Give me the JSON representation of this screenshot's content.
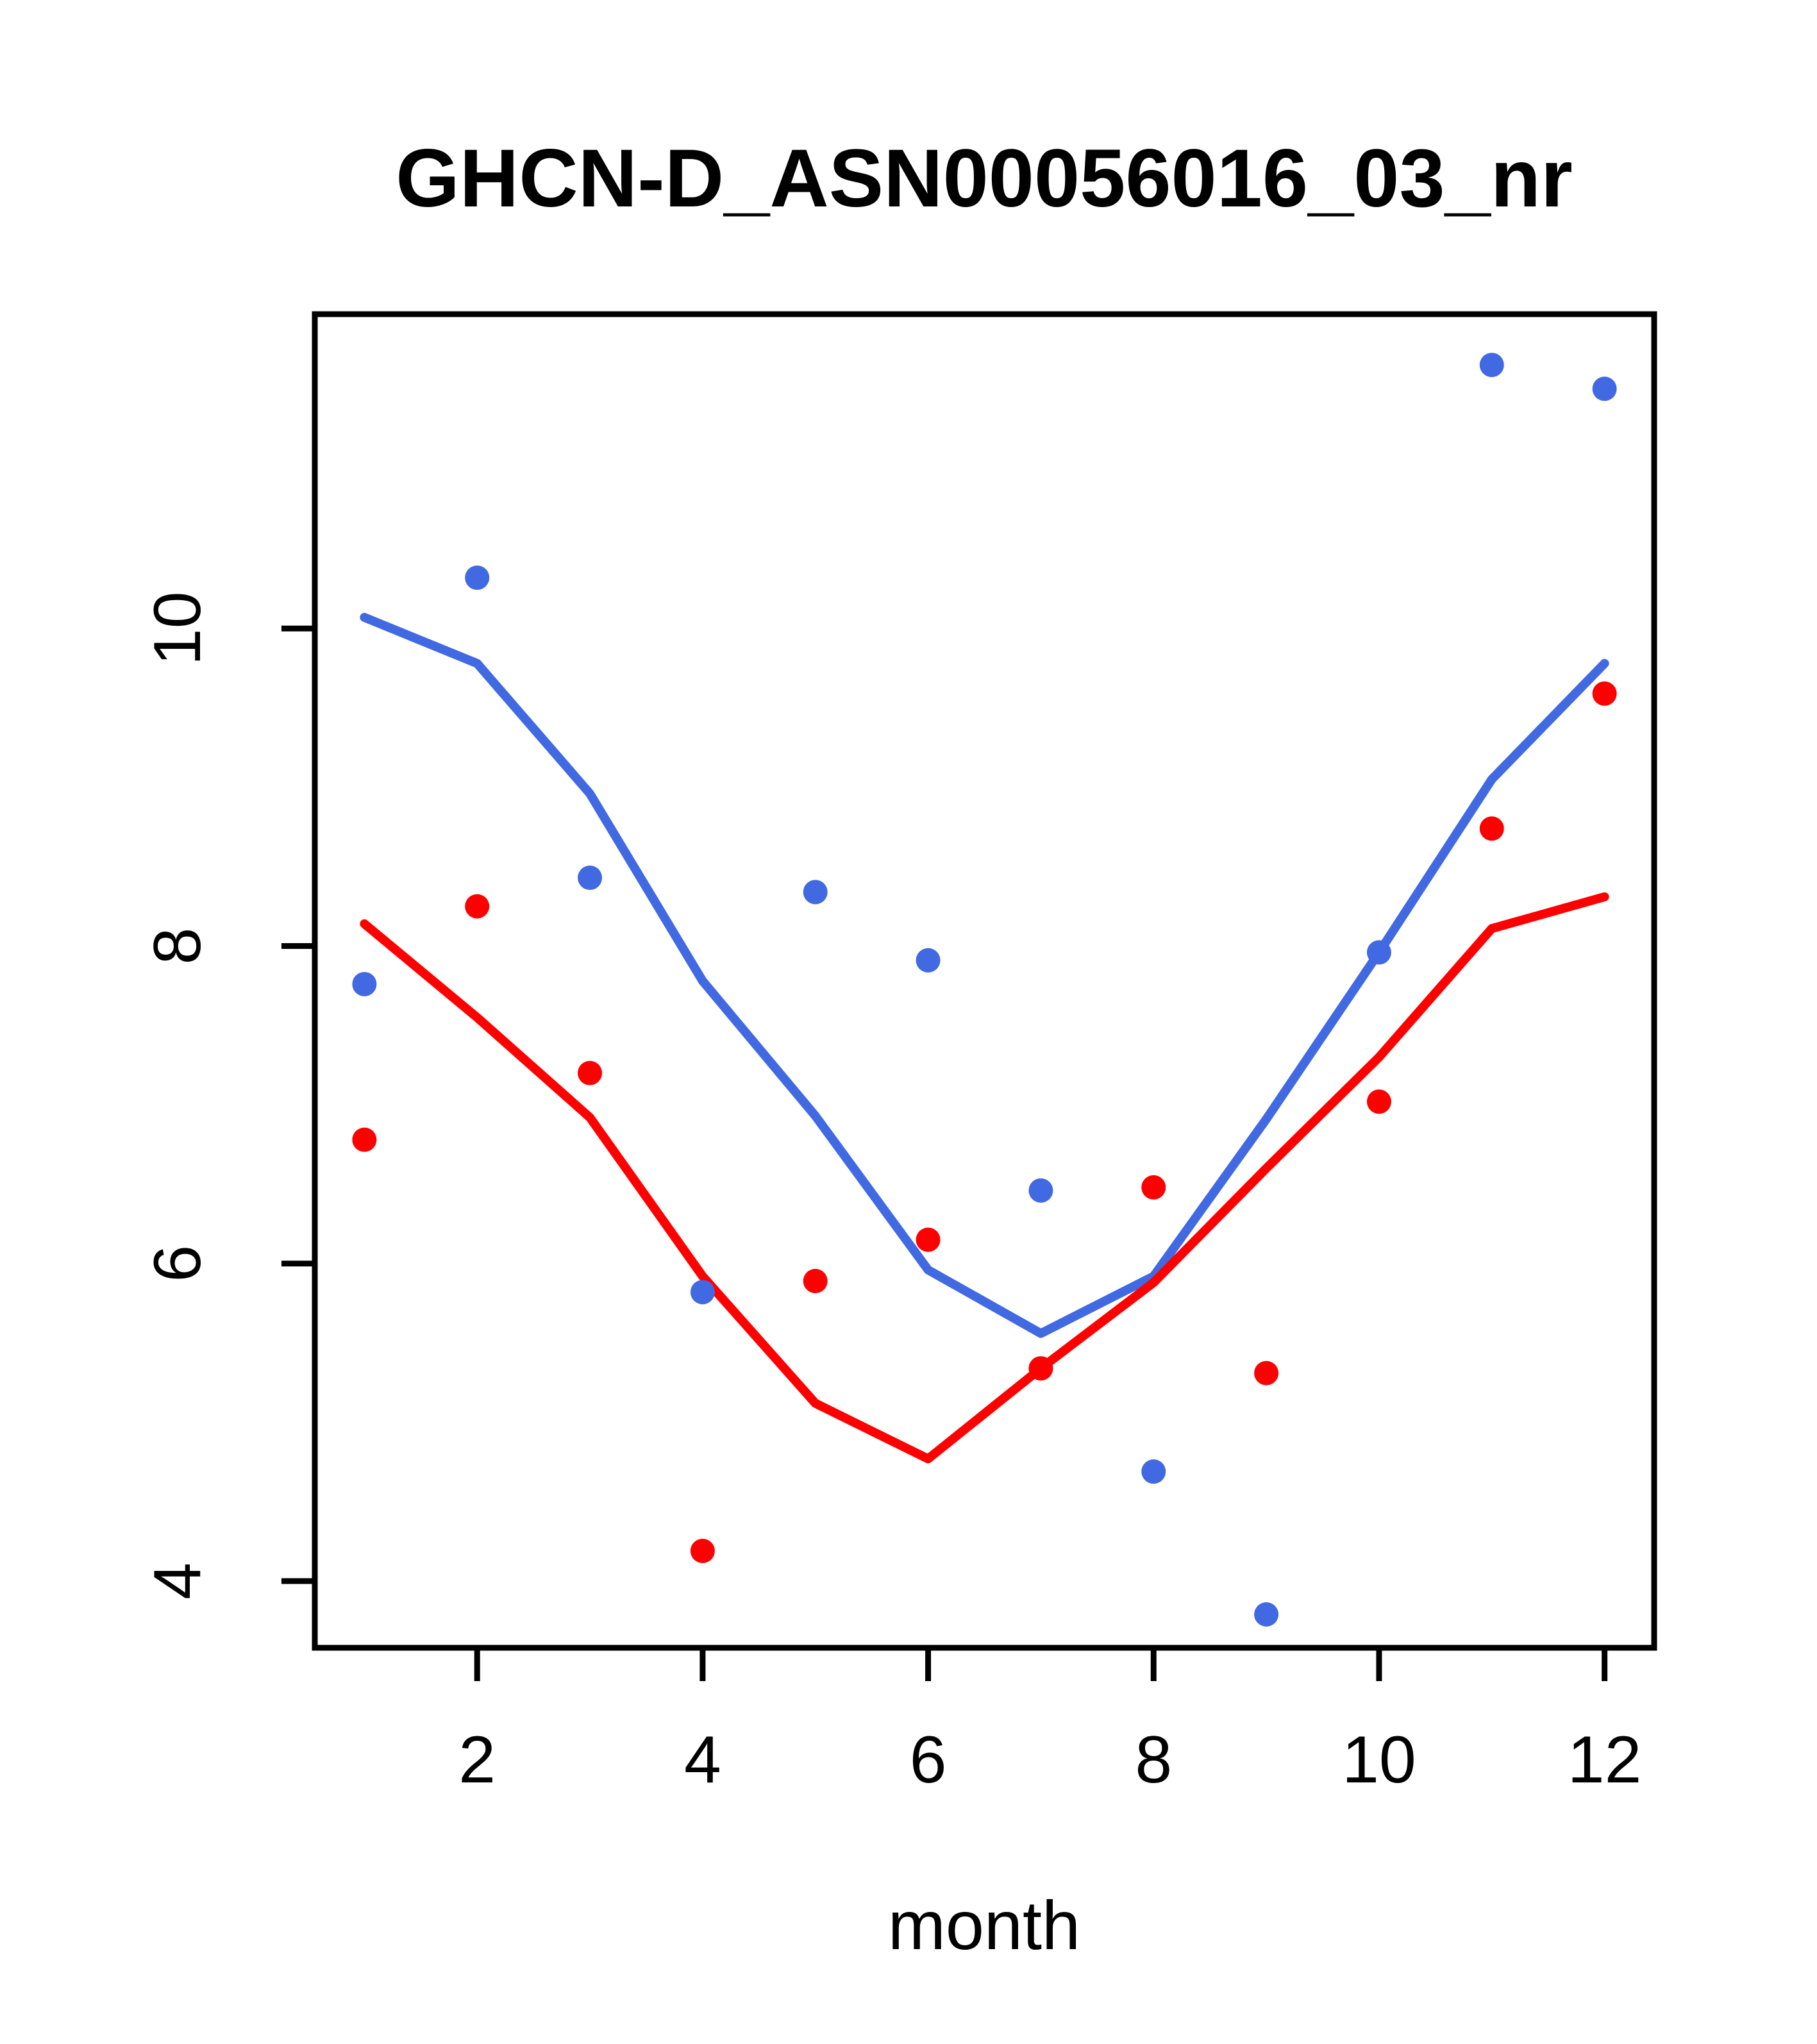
{
  "chart_data": {
    "type": "scatter",
    "title": "GHCN-D_ASN00056016_03_nr",
    "xlabel": "month",
    "ylabel": "",
    "grid": false,
    "legend_position": "none",
    "x_ticks": [
      2,
      4,
      6,
      8,
      10,
      12
    ],
    "y_ticks": [
      4,
      6,
      8,
      10
    ],
    "xlim": [
      0.56,
      12.44
    ],
    "ylim": [
      3.58,
      11.98
    ],
    "x": [
      1,
      2,
      3,
      4,
      5,
      6,
      7,
      8,
      9,
      10,
      11,
      12
    ],
    "colors": {
      "blue": "#4169E1",
      "red": "#FF0000",
      "axis": "#000000"
    },
    "series": [
      {
        "name": "blue-points",
        "kind": "points",
        "color_key": "blue",
        "values": [
          7.76,
          10.32,
          8.43,
          5.82,
          8.34,
          7.91,
          6.46,
          4.69,
          3.79,
          7.96,
          11.66,
          11.51
        ]
      },
      {
        "name": "red-points",
        "kind": "points",
        "color_key": "red",
        "values": [
          6.78,
          8.25,
          7.2,
          4.19,
          5.89,
          6.15,
          5.34,
          6.48,
          5.31,
          7.02,
          8.74,
          9.59
        ]
      },
      {
        "name": "blue-trend",
        "kind": "line",
        "color_key": "blue",
        "values": [
          10.07,
          9.78,
          8.96,
          7.78,
          6.93,
          5.96,
          5.56,
          5.92,
          6.91,
          7.96,
          9.05,
          9.78
        ]
      },
      {
        "name": "red-trend",
        "kind": "line",
        "color_key": "red",
        "values": [
          8.14,
          7.55,
          6.92,
          5.92,
          5.12,
          4.77,
          5.34,
          5.88,
          6.6,
          7.3,
          8.11,
          8.31
        ]
      }
    ]
  }
}
